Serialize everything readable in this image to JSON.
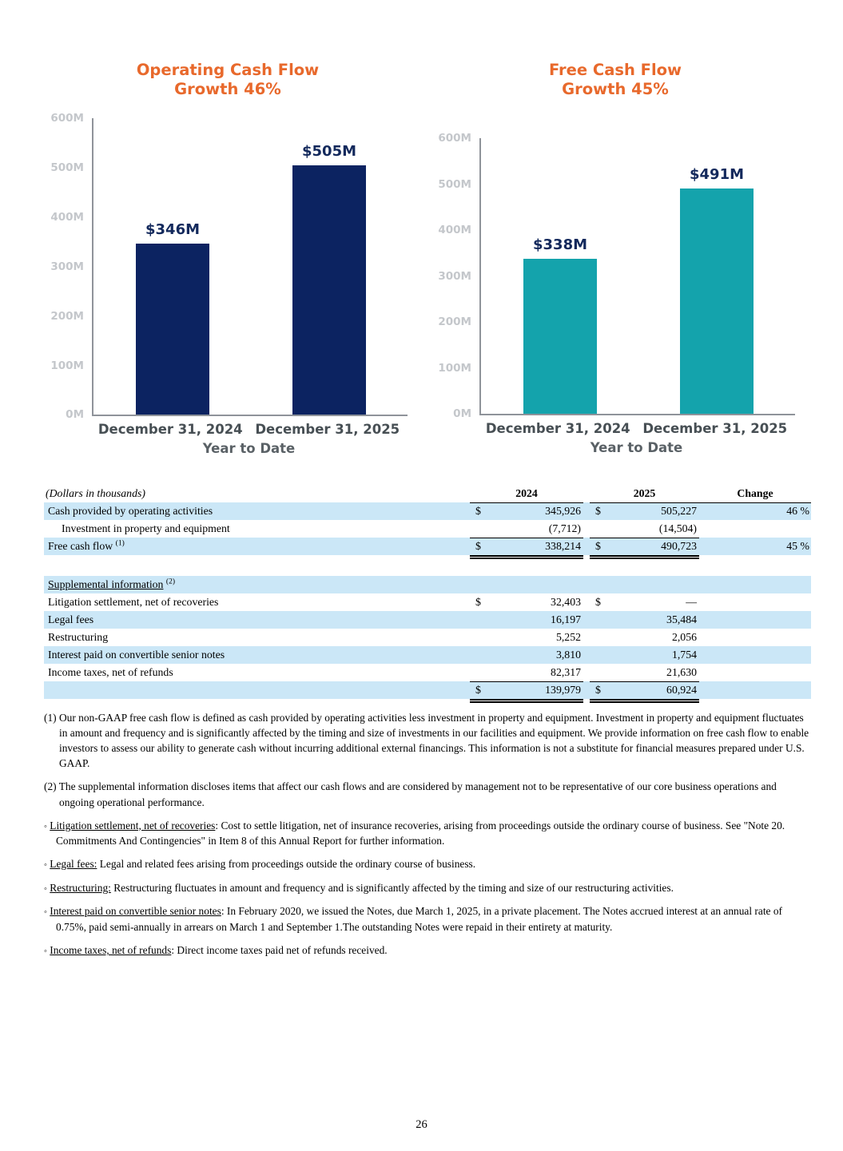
{
  "page": {
    "number": "26"
  },
  "chart_data": [
    {
      "type": "bar",
      "title": "Operating Cash Flow",
      "subtitle": "Growth 46%",
      "categories": [
        "December 31, 2024",
        "December 31, 2025"
      ],
      "values": [
        346,
        505
      ],
      "bar_labels": [
        "$346M",
        "$505M"
      ],
      "xlabel": "Year to Date",
      "ylabel": "",
      "ylim": [
        0,
        600
      ],
      "yticks": [
        0,
        100,
        200,
        300,
        400,
        500,
        600
      ],
      "ytick_suffix": "M",
      "bar_color": "#0c2361",
      "grid": false,
      "legend": "none"
    },
    {
      "type": "bar",
      "title": "Free Cash Flow",
      "subtitle": "Growth 45%",
      "categories": [
        "December 31, 2024",
        "December 31, 2025"
      ],
      "values": [
        338,
        491
      ],
      "bar_labels": [
        "$338M",
        "$491M"
      ],
      "xlabel": "Year to Date",
      "ylabel": "",
      "ylim": [
        0,
        600
      ],
      "yticks": [
        0,
        100,
        200,
        300,
        400,
        500,
        600
      ],
      "ytick_suffix": "M",
      "bar_color": "#14a3ac",
      "grid": false,
      "legend": "none"
    }
  ],
  "colors": {
    "accent_orange": "#e8692c",
    "navy_bar": "#0c2361",
    "teal_bar": "#14a3ac",
    "row_highlight": "#cbe7f7",
    "value_label_navy": "#13295c"
  },
  "table": {
    "unit_note": "(Dollars in thousands)",
    "columns": {
      "y2024": "2024",
      "y2025": "2025",
      "change": "Change"
    },
    "rows": [
      {
        "label": "Cash provided by operating activities",
        "d1": "$",
        "v1": "345,926",
        "d2": "$",
        "v2": "505,227",
        "change": "46 %",
        "shade": true
      },
      {
        "label": "Investment in property and equipment",
        "indent": true,
        "d1": "",
        "v1": "(7,712)",
        "d2": "",
        "v2": "(14,504)",
        "change": "",
        "border": "single"
      },
      {
        "label": "Free cash flow",
        "sup": "(1)",
        "d1": "$",
        "v1": "338,214",
        "d2": "$",
        "v2": "490,723",
        "change": "45 %",
        "shade": true,
        "border": "double"
      }
    ]
  },
  "supplemental": {
    "heading": "Supplemental information",
    "heading_sup": "(2)",
    "rows": [
      {
        "label": "Litigation settlement, net of recoveries",
        "d1": "$",
        "v1": "32,403",
        "d2": "$",
        "v2": "—",
        "change": ""
      },
      {
        "label": "Legal fees",
        "v1": "16,197",
        "v2": "35,484",
        "change": "",
        "shade": true
      },
      {
        "label": "Restructuring",
        "v1": "5,252",
        "v2": "2,056",
        "change": ""
      },
      {
        "label": "Interest paid on convertible senior notes",
        "v1": "3,810",
        "v2": "1,754",
        "change": "",
        "shade": true
      },
      {
        "label": "Income taxes, net of refunds",
        "v1": "82,317",
        "v2": "21,630",
        "change": "",
        "border": "single"
      },
      {
        "label": "",
        "d1": "$",
        "v1": "139,979",
        "d2": "$",
        "v2": "60,924",
        "change": "",
        "shade": true,
        "border": "double"
      }
    ]
  },
  "footnotes": [
    {
      "marker": "(1)",
      "text": "Our non-GAAP free cash flow is defined as cash provided by operating activities less investment in property and equipment. Investment in property and equipment fluctuates in amount and frequency and is significantly affected by the timing and size of investments in our facilities and equipment. We provide information on free cash flow to enable investors to assess our ability to generate cash without incurring additional external financings. This information is not a substitute for financial measures prepared under U.S. GAAP."
    },
    {
      "marker": "(2)",
      "text": "The supplemental information discloses items that affect our cash flows and are considered by management not to be representative of our core business operations and ongoing operational performance."
    }
  ],
  "bullets": [
    {
      "marker": "◦",
      "lead": "Litigation settlement, net of recoveries",
      "rest": ": Cost to settle litigation, net of insurance recoveries, arising from proceedings outside the ordinary course of business. See \"Note 20. Commitments And Contingencies\" in Item 8 of this Annual Report for further information."
    },
    {
      "marker": "◦",
      "lead": "Legal fees:",
      "rest": " Legal and related fees arising from proceedings outside the ordinary course of business."
    },
    {
      "marker": "◦",
      "lead": "Restructuring:",
      "rest": " Restructuring fluctuates in amount and frequency and is significantly affected by the timing and size of our restructuring activities."
    },
    {
      "marker": "◦",
      "lead": "Interest paid on convertible senior notes",
      "rest": ": In February 2020, we issued the Notes, due March 1, 2025, in a private placement. The Notes accrued interest at an annual rate of 0.75%, paid semi-annually in arrears on March 1 and September 1.The outstanding Notes were repaid in their entirety at maturity."
    },
    {
      "marker": "◦",
      "lead": "Income taxes, net of refunds",
      "rest": ": Direct income taxes paid net of refunds received."
    }
  ]
}
